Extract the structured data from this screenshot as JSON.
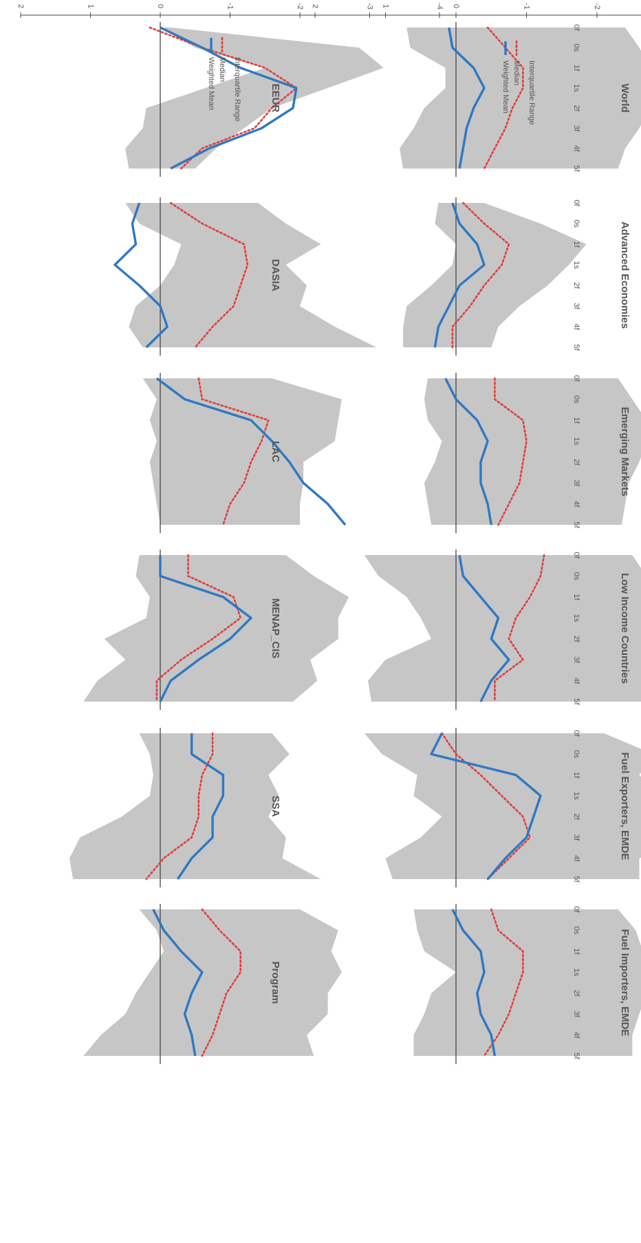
{
  "x_ticks": [
    "0f",
    "0s",
    "1f",
    "1s",
    "2f",
    "3f",
    "4f",
    "5f"
  ],
  "legend": {
    "iqr_label": "Interquartile Range",
    "median_label": "Median",
    "mean_label": "Weighted Mean"
  },
  "colors": {
    "iqr_fill": "#c6c6c6",
    "median": "#e23b3b",
    "mean": "#2e78c2",
    "axis": "#444444",
    "text": "#555555"
  },
  "chart_data": [
    {
      "type": "area",
      "title": "World",
      "ylim": [
        -4,
        2
      ],
      "yticks": [
        "-4",
        "-3",
        "-2",
        "-1",
        "0",
        "1",
        "2"
      ],
      "xticks_shown": true,
      "categories": [
        "0f",
        "0s",
        "1f",
        "1s",
        "2f",
        "3f",
        "4f",
        "5f"
      ],
      "iqr_low": [
        -2.4,
        -2.6,
        -2.75,
        -2.85,
        -2.75,
        -2.6,
        -2.4,
        -2.3
      ],
      "iqr_high": [
        0.7,
        0.65,
        0.15,
        0.15,
        0.45,
        0.6,
        0.8,
        0.75
      ],
      "series": [
        {
          "name": "Median",
          "values": [
            -0.45,
            -0.7,
            -0.95,
            -0.95,
            -0.8,
            -0.7,
            -0.55,
            -0.4
          ]
        },
        {
          "name": "Weighted Mean",
          "values": [
            0.1,
            0.05,
            -0.25,
            -0.4,
            -0.25,
            -0.15,
            -0.1,
            -0.05
          ]
        }
      ]
    },
    {
      "type": "area",
      "title": "Advanced Economies",
      "ylim": [
        -4,
        2
      ],
      "xticks_shown": true,
      "categories": [
        "0f",
        "0s",
        "1f",
        "1s",
        "2f",
        "3f",
        "4f",
        "5f"
      ],
      "iqr_low": [
        -0.4,
        -1.2,
        -1.85,
        -1.6,
        -1.3,
        -0.9,
        -0.6,
        -0.5
      ],
      "iqr_high": [
        0.25,
        0.3,
        0.0,
        0.05,
        0.35,
        0.7,
        0.75,
        0.75
      ],
      "series": [
        {
          "name": "Median",
          "values": [
            -0.1,
            -0.4,
            -0.75,
            -0.65,
            -0.4,
            -0.2,
            0.05,
            0.05
          ]
        },
        {
          "name": "Weighted Mean",
          "values": [
            0.05,
            -0.05,
            -0.3,
            -0.4,
            -0.05,
            0.1,
            0.25,
            0.3
          ]
        }
      ]
    },
    {
      "type": "area",
      "title": "Emerging Markets",
      "ylim": [
        -4,
        2
      ],
      "xticks_shown": true,
      "categories": [
        "0f",
        "0s",
        "1f",
        "1s",
        "2f",
        "3f",
        "4f",
        "5f"
      ],
      "iqr_low": [
        -2.3,
        -2.5,
        -2.7,
        -2.7,
        -2.6,
        -2.45,
        -2.4,
        -2.35
      ],
      "iqr_high": [
        0.4,
        0.45,
        0.4,
        0.2,
        0.3,
        0.45,
        0.4,
        0.35
      ],
      "series": [
        {
          "name": "Median",
          "values": [
            -0.55,
            -0.55,
            -0.95,
            -1.0,
            -0.95,
            -0.9,
            -0.75,
            -0.6
          ]
        },
        {
          "name": "Weighted Mean",
          "values": [
            0.15,
            0.0,
            -0.3,
            -0.45,
            -0.35,
            -0.35,
            -0.45,
            -0.5
          ]
        }
      ]
    },
    {
      "type": "area",
      "title": "Low Income Countries",
      "ylim": [
        -4,
        2
      ],
      "xticks_shown": true,
      "categories": [
        "0f",
        "0s",
        "1f",
        "1s",
        "2f",
        "3f",
        "4f",
        "5f"
      ],
      "iqr_low": [
        -2.5,
        -2.7,
        -3.3,
        -3.1,
        -3.0,
        -2.9,
        -3.0,
        -3.0
      ],
      "iqr_high": [
        1.3,
        1.1,
        0.7,
        0.5,
        0.35,
        1.0,
        1.25,
        1.2
      ],
      "series": [
        {
          "name": "Median",
          "values": [
            -1.25,
            -1.2,
            -1.05,
            -0.85,
            -0.75,
            -0.95,
            -0.55,
            -0.55
          ]
        },
        {
          "name": "Weighted Mean",
          "values": [
            -0.05,
            -0.1,
            -0.35,
            -0.6,
            -0.5,
            -0.75,
            -0.5,
            -0.35
          ]
        }
      ]
    },
    {
      "type": "area",
      "title": "Fuel Exporters, EMDE",
      "ylim": [
        -4,
        2
      ],
      "xticks_shown": true,
      "categories": [
        "0f",
        "0s",
        "1f",
        "1s",
        "2f",
        "3f",
        "4f",
        "5f"
      ],
      "iqr_low": [
        -2.1,
        -2.8,
        -2.6,
        -2.9,
        -3.25,
        -3.2,
        -2.6,
        -2.6
      ],
      "iqr_high": [
        1.3,
        1.05,
        0.55,
        0.6,
        0.2,
        0.5,
        1.0,
        0.9
      ],
      "series": [
        {
          "name": "Median",
          "values": [
            0.2,
            0.0,
            -0.35,
            -0.65,
            -0.95,
            -1.05,
            -0.75,
            -0.45
          ]
        },
        {
          "name": "Weighted Mean",
          "values": [
            0.2,
            0.35,
            -0.85,
            -1.2,
            -1.1,
            -1.0,
            -0.7,
            -0.45
          ]
        }
      ]
    },
    {
      "type": "area",
      "title": "Fuel Importers, EMDE",
      "ylim": [
        -4,
        2
      ],
      "xticks_shown": true,
      "categories": [
        "0f",
        "0s",
        "1f",
        "1s",
        "2f",
        "3f",
        "4f",
        "5f"
      ],
      "iqr_low": [
        -2.3,
        -2.55,
        -2.65,
        -2.75,
        -2.7,
        -2.6,
        -2.5,
        -2.5
      ],
      "iqr_high": [
        0.6,
        0.55,
        0.45,
        0.0,
        0.35,
        0.45,
        0.6,
        0.6
      ],
      "series": [
        {
          "name": "Median",
          "values": [
            -0.5,
            -0.6,
            -0.95,
            -0.95,
            -0.85,
            -0.75,
            -0.6,
            -0.4
          ]
        },
        {
          "name": "Weighted Mean",
          "values": [
            0.05,
            -0.1,
            -0.35,
            -0.4,
            -0.3,
            -0.35,
            -0.5,
            -0.55
          ]
        }
      ]
    },
    {
      "type": "area",
      "title": "EEUR",
      "ylim": [
        -4,
        2
      ],
      "yticks": [
        "-4",
        "-3",
        "-2",
        "-1",
        "0",
        "1",
        "2"
      ],
      "xticks_shown": false,
      "categories": [
        "0f",
        "0s",
        "1f",
        "1s",
        "2f",
        "3f",
        "4f",
        "5f"
      ],
      "iqr_low": [
        -0.15,
        -2.85,
        -3.2,
        -2.4,
        -1.6,
        -1.2,
        -0.8,
        -0.5
      ],
      "iqr_high": [
        0.0,
        -0.5,
        -1.5,
        -0.65,
        0.2,
        0.25,
        0.5,
        0.45
      ],
      "series": [
        {
          "name": "Median",
          "values": [
            0.15,
            -0.6,
            -1.5,
            -1.95,
            -1.6,
            -1.35,
            -0.6,
            -0.3
          ]
        },
        {
          "name": "Weighted Mean",
          "values": [
            0.0,
            -0.6,
            -1.15,
            -1.95,
            -1.9,
            -1.45,
            -0.7,
            -0.15
          ]
        }
      ]
    },
    {
      "type": "area",
      "title": "DASIA",
      "ylim": [
        -4,
        2
      ],
      "xticks_shown": false,
      "categories": [
        "0f",
        "0s",
        "1f",
        "1s",
        "2f",
        "3f",
        "4f",
        "5f"
      ],
      "iqr_low": [
        -1.4,
        -1.8,
        -2.3,
        -1.8,
        -2.1,
        -2.0,
        -2.5,
        -3.1
      ],
      "iqr_high": [
        0.5,
        0.3,
        -0.3,
        -0.2,
        0.0,
        0.35,
        0.45,
        0.25
      ],
      "series": [
        {
          "name": "Median",
          "values": [
            -0.15,
            -0.6,
            -1.2,
            -1.25,
            -1.15,
            -1.05,
            -0.75,
            -0.5
          ]
        },
        {
          "name": "Weighted Mean",
          "values": [
            0.3,
            0.4,
            0.35,
            0.65,
            0.3,
            0.0,
            -0.1,
            0.2
          ]
        }
      ]
    },
    {
      "type": "area",
      "title": "LAC",
      "ylim": [
        -4,
        2
      ],
      "xticks_shown": false,
      "categories": [
        "0f",
        "0s",
        "1f",
        "1s",
        "2f",
        "3f",
        "4f",
        "5f"
      ],
      "iqr_low": [
        -1.6,
        -2.6,
        -2.55,
        -2.5,
        -2.05,
        -2.05,
        -2.0,
        -2.0
      ],
      "iqr_high": [
        0.25,
        0.05,
        0.15,
        0.05,
        0.15,
        0.1,
        0.05,
        0.0
      ],
      "series": [
        {
          "name": "Median",
          "values": [
            -0.55,
            -0.6,
            -1.55,
            -1.45,
            -1.3,
            -1.2,
            -1.0,
            -0.9
          ]
        },
        {
          "name": "Weighted Mean",
          "values": [
            0.05,
            -0.35,
            -1.3,
            -1.6,
            -1.85,
            -2.05,
            -2.4,
            -2.65
          ]
        }
      ]
    },
    {
      "type": "area",
      "title": "MENAP_CIS",
      "ylim": [
        -4,
        2
      ],
      "xticks_shown": false,
      "categories": [
        "0f",
        "0s",
        "1f",
        "1s",
        "2f",
        "3f",
        "4f",
        "5f"
      ],
      "iqr_low": [
        -1.8,
        -2.2,
        -2.7,
        -2.55,
        -2.55,
        -2.15,
        -2.25,
        -1.9
      ],
      "iqr_high": [
        0.3,
        0.35,
        0.15,
        0.2,
        0.8,
        0.5,
        0.9,
        1.1
      ],
      "series": [
        {
          "name": "Median",
          "values": [
            -0.4,
            -0.4,
            -1.05,
            -1.15,
            -0.75,
            -0.3,
            0.05,
            0.05
          ]
        },
        {
          "name": "Weighted Mean",
          "values": [
            0.0,
            0.0,
            -0.9,
            -1.3,
            -1.0,
            -0.55,
            -0.15,
            0.0
          ]
        }
      ]
    },
    {
      "type": "area",
      "title": "SSA",
      "ylim": [
        -4,
        2
      ],
      "xticks_shown": false,
      "categories": [
        "0f",
        "0s",
        "1f",
        "1s",
        "2f",
        "3f",
        "4f",
        "5f"
      ],
      "iqr_low": [
        -1.6,
        -1.85,
        -1.55,
        -1.7,
        -1.55,
        -1.8,
        -1.75,
        -2.3
      ],
      "iqr_high": [
        0.3,
        0.15,
        0.1,
        0.15,
        0.55,
        1.15,
        1.3,
        1.25
      ],
      "series": [
        {
          "name": "Median",
          "values": [
            -0.75,
            -0.75,
            -0.6,
            -0.55,
            -0.55,
            -0.45,
            -0.05,
            0.2
          ]
        },
        {
          "name": "Weighted Mean",
          "values": [
            -0.45,
            -0.45,
            -0.9,
            -0.9,
            -0.75,
            -0.75,
            -0.45,
            -0.25
          ]
        }
      ]
    },
    {
      "type": "area",
      "title": "Program",
      "ylim": [
        -4,
        2
      ],
      "xticks_shown": false,
      "categories": [
        "0f",
        "0s",
        "1f",
        "1s",
        "2f",
        "3f",
        "4f",
        "5f"
      ],
      "iqr_low": [
        -2.0,
        -2.55,
        -2.45,
        -2.6,
        -2.4,
        -2.4,
        -2.1,
        -2.2
      ],
      "iqr_high": [
        0.3,
        0.05,
        -0.05,
        0.15,
        0.35,
        0.5,
        0.85,
        1.1
      ],
      "series": [
        {
          "name": "Median",
          "values": [
            -0.6,
            -0.85,
            -1.15,
            -1.15,
            -0.95,
            -0.85,
            -0.75,
            -0.6
          ]
        },
        {
          "name": "Weighted Mean",
          "values": [
            0.1,
            -0.05,
            -0.3,
            -0.6,
            -0.45,
            -0.35,
            -0.45,
            -0.5
          ]
        }
      ]
    }
  ]
}
